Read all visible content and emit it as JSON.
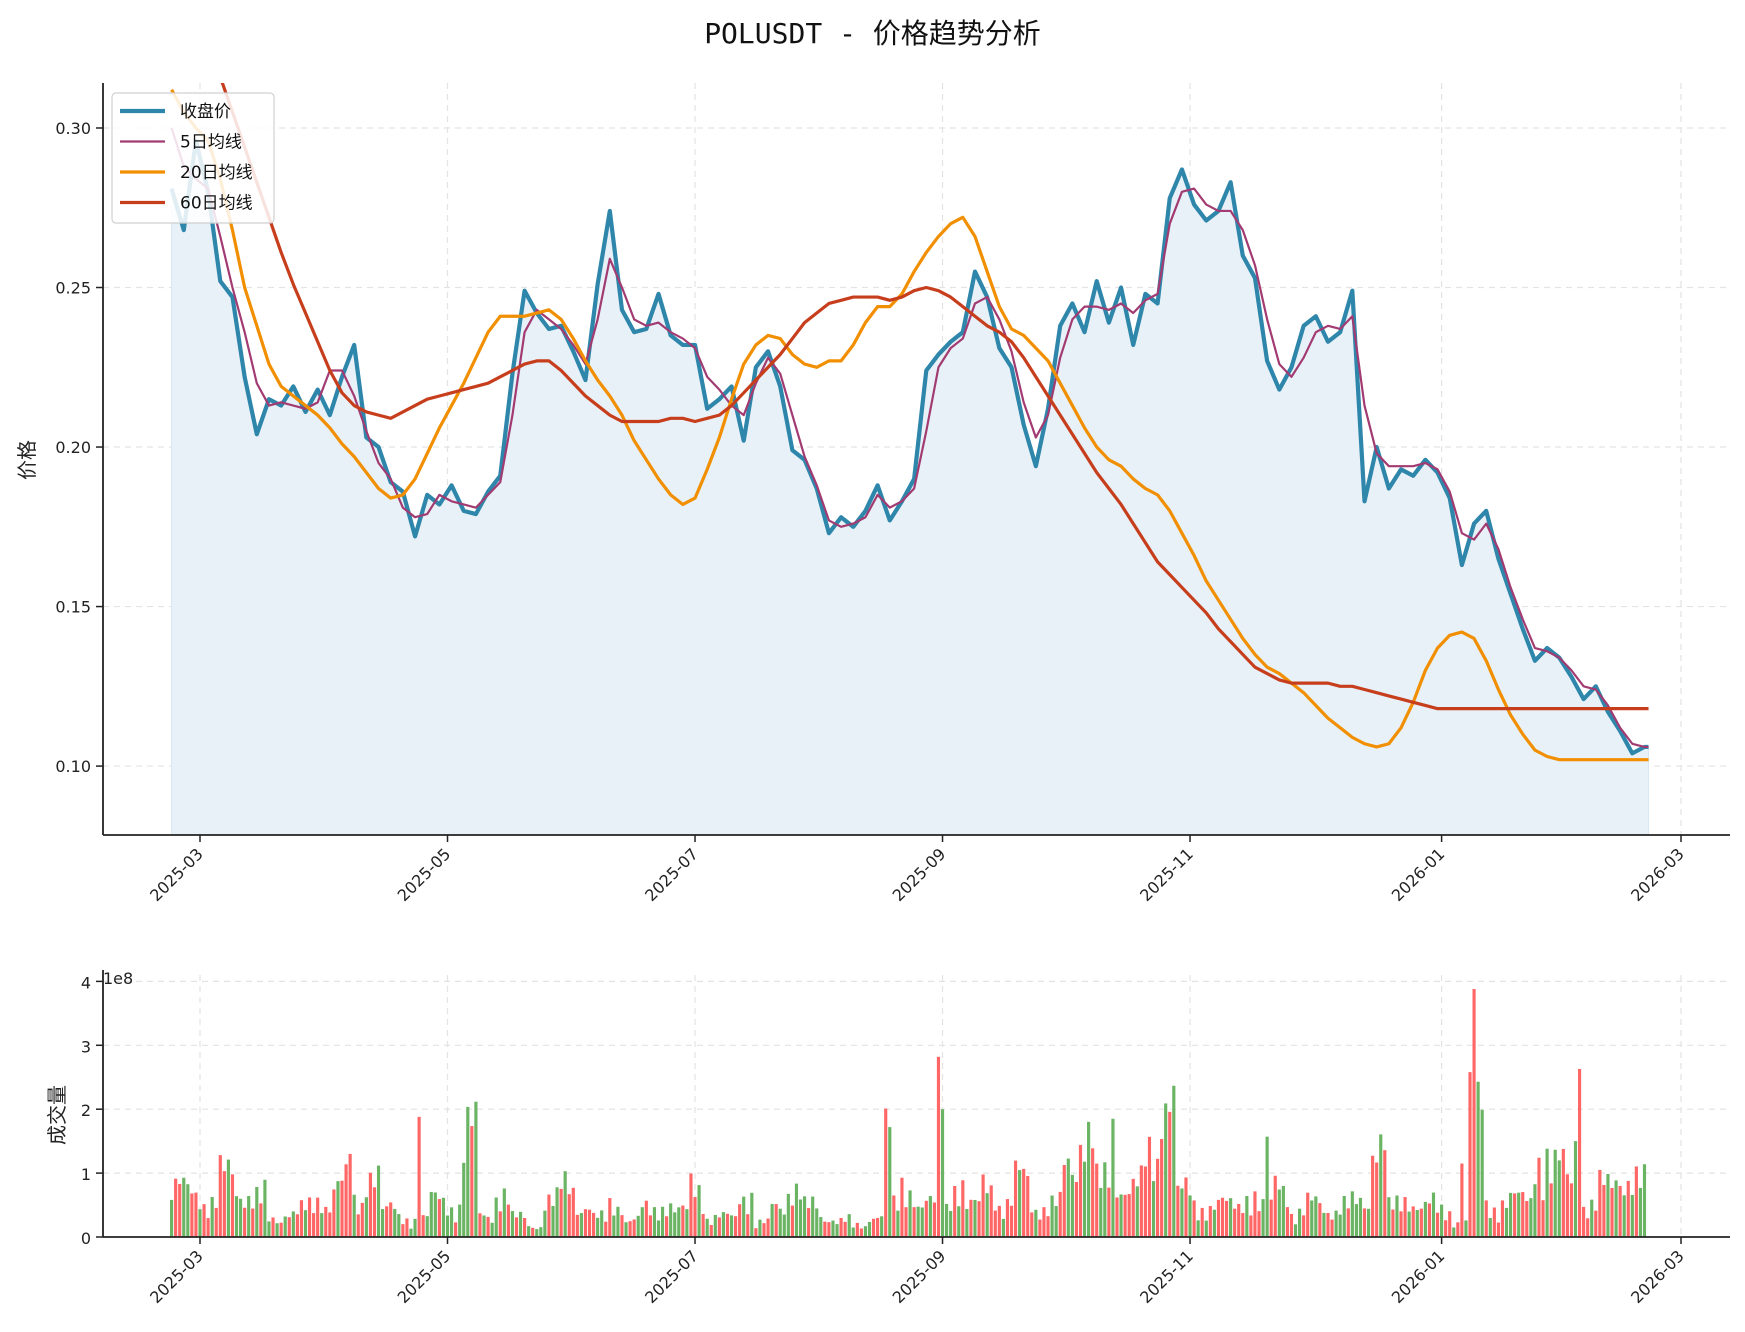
{
  "title": "POLUSDT - 价格趋势分析",
  "colors": {
    "close": "#2E86AB",
    "ma5": "#A23B72",
    "ma20": "#F18F01",
    "ma60": "#C73E1D",
    "fill": "#E8F1F7",
    "vol_up": "#6AB464",
    "vol_down": "#FF6666",
    "grid": "#E3E3E3"
  },
  "chart_data": [
    {
      "type": "line",
      "title": "POLUSDT - 价格趋势分析",
      "xlabel": "",
      "ylabel": "价格",
      "ylim": [
        0.0784,
        0.3141
      ],
      "yticks": [
        0.1,
        0.15,
        0.2,
        0.25,
        0.3
      ],
      "ytick_labels": [
        "0.10",
        "0.15",
        "0.20",
        "0.25",
        "0.30"
      ],
      "xticks": [
        "2025-03",
        "2025-05",
        "2025-07",
        "2025-09",
        "2025-11",
        "2026-01",
        "2026-03"
      ],
      "xrange_days": [
        -7,
        365
      ],
      "grid": true,
      "legend": {
        "position": "upper left",
        "entries": [
          "收盘价",
          "5日均线",
          "20日均线",
          "60日均线"
        ]
      },
      "x": [
        0,
        3,
        6,
        9,
        12,
        15,
        18,
        21,
        24,
        27,
        30,
        33,
        36,
        39,
        42,
        45,
        48,
        51,
        54,
        57,
        60,
        63,
        66,
        69,
        72,
        75,
        78,
        81,
        84,
        87,
        90,
        93,
        96,
        99,
        102,
        105,
        108,
        111,
        114,
        117,
        120,
        123,
        126,
        129,
        132,
        135,
        138,
        141,
        144,
        147,
        150,
        153,
        156,
        159,
        162,
        165,
        168,
        171,
        174,
        177,
        180,
        183,
        186,
        189,
        192,
        195,
        198,
        201,
        204,
        207,
        210,
        213,
        216,
        219,
        222,
        225,
        228,
        231,
        234,
        237,
        240,
        243,
        246,
        249,
        252,
        255,
        258,
        261,
        264,
        267,
        270,
        273,
        276,
        279,
        282,
        285,
        288,
        291,
        294,
        297,
        300,
        303,
        306,
        309,
        312,
        315,
        318,
        321,
        324,
        327,
        330,
        333,
        336,
        339,
        342,
        345,
        348,
        351,
        354,
        357,
        360,
        363,
        364
      ],
      "x_note": "days since 2025-02-22",
      "series": [
        {
          "name": "收盘价",
          "values": [
            0.281,
            0.268,
            0.296,
            0.28,
            0.252,
            0.247,
            0.222,
            0.204,
            0.215,
            0.213,
            0.219,
            0.211,
            0.218,
            0.21,
            0.222,
            0.232,
            0.203,
            0.2,
            0.189,
            0.186,
            0.172,
            0.185,
            0.182,
            0.188,
            0.18,
            0.179,
            0.186,
            0.191,
            0.223,
            0.249,
            0.242,
            0.237,
            0.238,
            0.23,
            0.221,
            0.251,
            0.274,
            0.243,
            0.236,
            0.237,
            0.248,
            0.235,
            0.232,
            0.232,
            0.212,
            0.215,
            0.219,
            0.202,
            0.225,
            0.23,
            0.219,
            0.199,
            0.196,
            0.187,
            0.173,
            0.178,
            0.175,
            0.18,
            0.188,
            0.177,
            0.183,
            0.19,
            0.224,
            0.229,
            0.233,
            0.236,
            0.255,
            0.247,
            0.231,
            0.225,
            0.207,
            0.194,
            0.212,
            0.238,
            0.245,
            0.236,
            0.252,
            0.239,
            0.25,
            0.232,
            0.248,
            0.245,
            0.278,
            0.287,
            0.276,
            0.271,
            0.274,
            0.283,
            0.26,
            0.253,
            0.227,
            0.218,
            0.225,
            0.238,
            0.241,
            0.233,
            0.236,
            0.249,
            0.183,
            0.2,
            0.187,
            0.193,
            0.191,
            0.196,
            0.192,
            0.184,
            0.163,
            0.176,
            0.18,
            0.165,
            0.154,
            0.143,
            0.133,
            0.137,
            0.134,
            0.128,
            0.121,
            0.125,
            0.117,
            0.111,
            0.104,
            0.106,
            0.106
          ]
        },
        {
          "name": "5日均线",
          "values": [
            0.3,
            0.288,
            0.284,
            0.281,
            0.266,
            0.25,
            0.236,
            0.22,
            0.213,
            0.214,
            0.213,
            0.212,
            0.214,
            0.224,
            0.224,
            0.216,
            0.205,
            0.195,
            0.19,
            0.181,
            0.178,
            0.179,
            0.185,
            0.183,
            0.182,
            0.181,
            0.185,
            0.189,
            0.21,
            0.236,
            0.243,
            0.24,
            0.237,
            0.232,
            0.226,
            0.24,
            0.259,
            0.25,
            0.24,
            0.238,
            0.239,
            0.236,
            0.234,
            0.231,
            0.222,
            0.218,
            0.213,
            0.21,
            0.22,
            0.228,
            0.223,
            0.21,
            0.197,
            0.188,
            0.177,
            0.175,
            0.176,
            0.178,
            0.185,
            0.181,
            0.183,
            0.187,
            0.205,
            0.225,
            0.231,
            0.234,
            0.245,
            0.247,
            0.24,
            0.23,
            0.214,
            0.203,
            0.21,
            0.228,
            0.24,
            0.244,
            0.244,
            0.243,
            0.245,
            0.242,
            0.246,
            0.248,
            0.27,
            0.28,
            0.281,
            0.276,
            0.274,
            0.274,
            0.268,
            0.257,
            0.24,
            0.226,
            0.222,
            0.228,
            0.236,
            0.238,
            0.237,
            0.241,
            0.213,
            0.198,
            0.194,
            0.194,
            0.194,
            0.195,
            0.193,
            0.186,
            0.173,
            0.171,
            0.176,
            0.168,
            0.156,
            0.146,
            0.137,
            0.136,
            0.134,
            0.13,
            0.125,
            0.124,
            0.119,
            0.112,
            0.107,
            0.106,
            0.106
          ]
        },
        {
          "name": "20日均线",
          "values": [
            0.312,
            0.305,
            0.3,
            0.296,
            0.284,
            0.268,
            0.25,
            0.238,
            0.226,
            0.219,
            0.216,
            0.213,
            0.21,
            0.206,
            0.201,
            0.197,
            0.192,
            0.187,
            0.184,
            0.185,
            0.19,
            0.198,
            0.206,
            0.213,
            0.22,
            0.228,
            0.236,
            0.241,
            0.241,
            0.241,
            0.242,
            0.243,
            0.24,
            0.234,
            0.227,
            0.221,
            0.216,
            0.21,
            0.202,
            0.196,
            0.19,
            0.185,
            0.182,
            0.184,
            0.193,
            0.203,
            0.215,
            0.226,
            0.232,
            0.235,
            0.234,
            0.229,
            0.226,
            0.225,
            0.227,
            0.227,
            0.232,
            0.239,
            0.244,
            0.244,
            0.248,
            0.255,
            0.261,
            0.266,
            0.27,
            0.272,
            0.266,
            0.255,
            0.244,
            0.237,
            0.235,
            0.231,
            0.227,
            0.22,
            0.213,
            0.206,
            0.2,
            0.196,
            0.194,
            0.19,
            0.187,
            0.185,
            0.18,
            0.173,
            0.166,
            0.158,
            0.152,
            0.146,
            0.14,
            0.135,
            0.131,
            0.129,
            0.126,
            0.123,
            0.119,
            0.115,
            0.112,
            0.109,
            0.107,
            0.106,
            0.107,
            0.112,
            0.12,
            0.13,
            0.137,
            0.141,
            0.142,
            0.14,
            0.133,
            0.124,
            0.116,
            0.11,
            0.105,
            0.103,
            0.102,
            0.102,
            0.102,
            0.102,
            0.102,
            0.102,
            0.102,
            0.102,
            0.102
          ]
        },
        {
          "name": "60日均线",
          "values": [
            null,
            null,
            null,
            null,
            0.316,
            0.305,
            0.294,
            0.283,
            0.272,
            0.261,
            0.251,
            0.242,
            0.233,
            0.224,
            0.217,
            0.213,
            0.211,
            0.21,
            0.209,
            0.211,
            0.213,
            0.215,
            0.216,
            0.217,
            0.218,
            0.219,
            0.22,
            0.222,
            0.224,
            0.226,
            0.227,
            0.227,
            0.224,
            0.22,
            0.216,
            0.213,
            0.21,
            0.208,
            0.208,
            0.208,
            0.208,
            0.209,
            0.209,
            0.208,
            0.209,
            0.21,
            0.213,
            0.217,
            0.221,
            0.225,
            0.229,
            0.234,
            0.239,
            0.242,
            0.245,
            0.246,
            0.247,
            0.247,
            0.247,
            0.246,
            0.247,
            0.249,
            0.25,
            0.249,
            0.247,
            0.244,
            0.241,
            0.238,
            0.236,
            0.233,
            0.228,
            0.222,
            0.216,
            0.21,
            0.204,
            0.198,
            0.192,
            0.187,
            0.182,
            0.176,
            0.17,
            0.164,
            0.16,
            0.156,
            0.152,
            0.148,
            0.143,
            0.139,
            0.135,
            0.131,
            0.129,
            0.127,
            0.126,
            0.126,
            0.126,
            0.126,
            0.125,
            0.125,
            0.124,
            0.123,
            0.122,
            0.121,
            0.12,
            0.119,
            0.118,
            0.118,
            0.118,
            0.118,
            0.118,
            0.118,
            0.118,
            0.118,
            0.118,
            0.118,
            0.118,
            0.118,
            0.118,
            0.118,
            0.118,
            0.118,
            0.118,
            0.118,
            0.118
          ]
        }
      ]
    },
    {
      "type": "bar",
      "title": "",
      "xlabel": "",
      "ylabel": "成交量",
      "offset_label": "1e8",
      "ylim": [
        0,
        4.1
      ],
      "yticks": [
        0,
        1,
        2,
        3,
        4
      ],
      "ytick_labels": [
        "0",
        "1",
        "2",
        "3",
        "4"
      ],
      "xticks": [
        "2025-03",
        "2025-05",
        "2025-07",
        "2025-09",
        "2025-11",
        "2026-01",
        "2026-03"
      ],
      "grid": true,
      "unit": "1e8",
      "x_note": "days since 2025-02-22, bars colored red (down) / green (up)",
      "x": [
        0,
        4,
        8,
        12,
        16,
        20,
        24,
        28,
        32,
        36,
        40,
        44,
        48,
        52,
        56,
        60,
        64,
        68,
        72,
        76,
        80,
        84,
        88,
        92,
        96,
        100,
        104,
        108,
        112,
        116,
        120,
        124,
        128,
        132,
        136,
        140,
        144,
        148,
        152,
        156,
        160,
        164,
        168,
        172,
        176,
        180,
        184,
        188,
        192,
        196,
        200,
        204,
        208,
        212,
        216,
        220,
        224,
        228,
        232,
        236,
        240,
        244,
        248,
        252,
        256,
        260,
        264,
        268,
        272,
        276,
        280,
        284,
        288,
        292,
        296,
        300,
        304,
        308,
        312,
        316,
        320,
        324,
        328,
        332,
        336,
        340,
        344,
        348,
        352,
        356,
        360,
        363
      ],
      "values": [
        0.85,
        0.82,
        0.65,
        1.11,
        0.8,
        0.75,
        0.29,
        0.48,
        0.52,
        0.62,
        1.0,
        0.58,
        1.3,
        0.48,
        0.34,
        0.35,
        0.65,
        0.58,
        1.88,
        0.38,
        0.8,
        0.35,
        0.2,
        0.65,
        0.95,
        0.55,
        0.35,
        0.6,
        0.3,
        0.5,
        0.6,
        0.45,
        0.95,
        0.35,
        0.35,
        0.8,
        0.25,
        0.55,
        0.9,
        0.55,
        0.35,
        0.3,
        0.2,
        0.4,
        0.55,
        0.9,
        0.6,
        0.55,
        1.0,
        0.55,
        0.95,
        0.6,
        1.05,
        0.55,
        0.6,
        1.25,
        2.0,
        1.0,
        0.95,
        0.95,
        1.4,
        2.82,
        0.8,
        0.55,
        0.6,
        0.55,
        0.8,
        0.55,
        0.95,
        0.45,
        0.6,
        0.5,
        0.6,
        0.6,
        1.85,
        0.55,
        0.65,
        0.6,
        0.45,
        0.3,
        0.4,
        0.55,
        0.7,
        0.65,
        1.55,
        1.25,
        1.0,
        0.6,
        0.9,
        1.1,
        1.05,
        0.95
      ],
      "colors": [
        "up",
        "down",
        "down",
        "up",
        "up",
        "down",
        "down",
        "up",
        "up",
        "down",
        "up",
        "down",
        "down",
        "up",
        "down",
        "up",
        "down",
        "up",
        "down",
        "up",
        "up",
        "down",
        "up",
        "down",
        "down",
        "up",
        "down",
        "up",
        "up",
        "down",
        "up",
        "down",
        "down",
        "up",
        "down",
        "down",
        "up",
        "up",
        "down",
        "up",
        "down",
        "up",
        "down",
        "up",
        "down",
        "down",
        "down",
        "up",
        "up",
        "down",
        "down",
        "up",
        "down",
        "up",
        "down",
        "up",
        "down",
        "up",
        "down",
        "up",
        "down",
        "down",
        "up",
        "down",
        "up",
        "down",
        "up",
        "down",
        "up",
        "down",
        "up",
        "up",
        "down",
        "up",
        "up",
        "down",
        "down",
        "up",
        "down",
        "down",
        "up",
        "up",
        "down",
        "down",
        "up",
        "up",
        "down",
        "up",
        "down",
        "up",
        "down",
        "up"
      ],
      "highlights": [
        {
          "x": 321,
          "value": 3.88,
          "color": "down"
        },
        {
          "x": 320,
          "value": 2.58,
          "color": "down"
        },
        {
          "x": 322,
          "value": 2.43,
          "color": "up"
        },
        {
          "x": 323,
          "value": 1.99,
          "color": "up"
        },
        {
          "x": 347,
          "value": 2.63,
          "color": "down"
        },
        {
          "x": 346,
          "value": 1.5,
          "color": "up"
        },
        {
          "x": 189,
          "value": 2.82,
          "color": "down"
        },
        {
          "x": 190,
          "value": 2.0,
          "color": "up"
        },
        {
          "x": 176,
          "value": 2.01,
          "color": "down"
        },
        {
          "x": 177,
          "value": 1.72,
          "color": "up"
        },
        {
          "x": 61,
          "value": 1.88,
          "color": "down"
        },
        {
          "x": 44,
          "value": 1.3,
          "color": "down"
        },
        {
          "x": 232,
          "value": 1.85,
          "color": "up"
        },
        {
          "x": 270,
          "value": 1.57,
          "color": "up"
        },
        {
          "x": 318,
          "value": 1.15,
          "color": "down"
        }
      ]
    }
  ]
}
